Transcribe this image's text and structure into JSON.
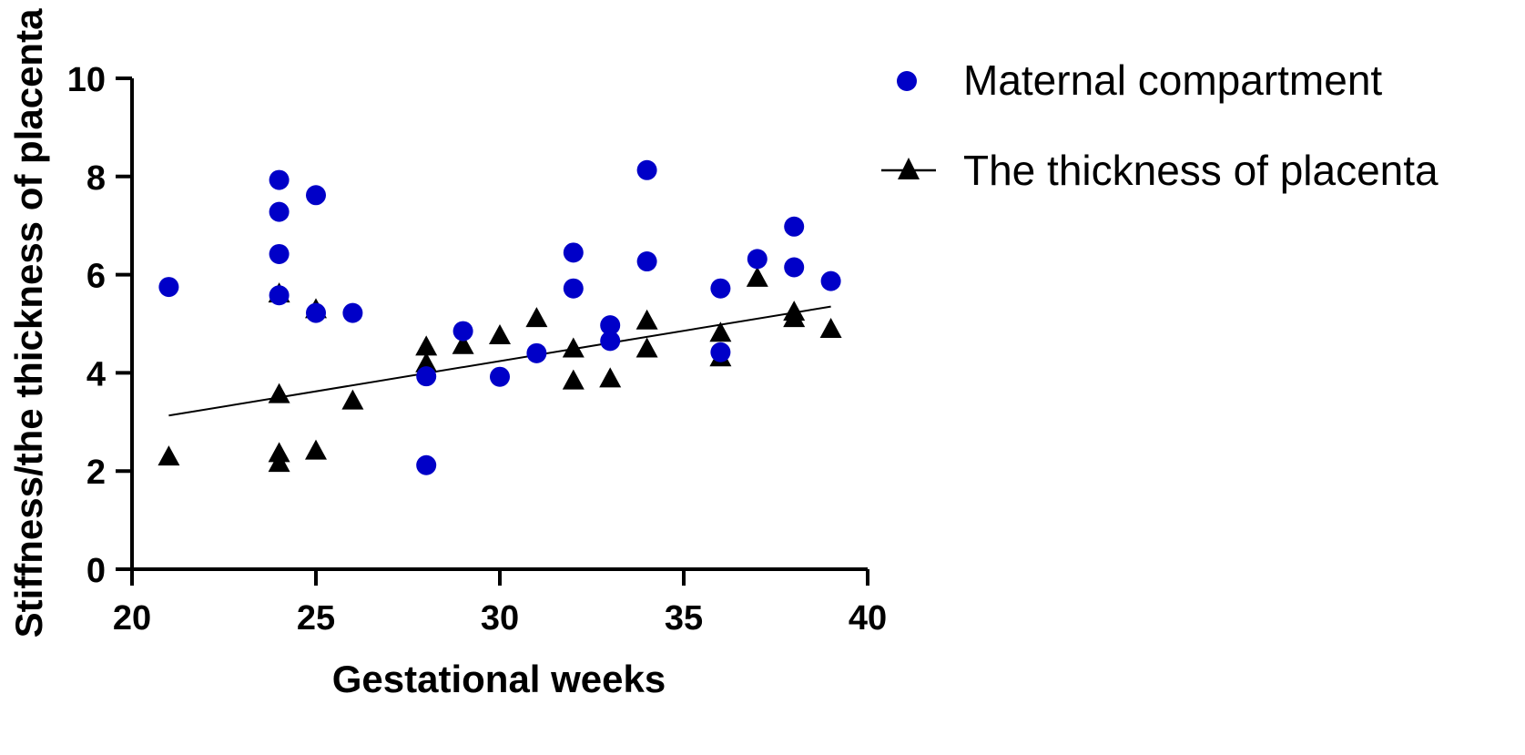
{
  "chart_data": {
    "type": "scatter",
    "xlabel": "Gestational weeks",
    "ylabel": "Stiffness/the thickness of placenta",
    "xlim": [
      20,
      40
    ],
    "ylim": [
      0,
      10
    ],
    "xticks": [
      "20",
      "25",
      "30",
      "35",
      "40"
    ],
    "yticks": [
      "0",
      "2",
      "4",
      "6",
      "8",
      "10"
    ],
    "legend_position": "top-right",
    "series": [
      {
        "name": "Maternal compartment",
        "marker": "circle",
        "color": "#0000c8",
        "points": [
          [
            21,
            5.75
          ],
          [
            24,
            7.93
          ],
          [
            24,
            7.28
          ],
          [
            24,
            6.42
          ],
          [
            24,
            5.58
          ],
          [
            25,
            7.62
          ],
          [
            25,
            5.22
          ],
          [
            26,
            5.22
          ],
          [
            28,
            3.93
          ],
          [
            28,
            2.12
          ],
          [
            29,
            4.85
          ],
          [
            30,
            3.92
          ],
          [
            31,
            4.4
          ],
          [
            32,
            6.45
          ],
          [
            32,
            5.72
          ],
          [
            33,
            4.97
          ],
          [
            33,
            4.65
          ],
          [
            34,
            8.13
          ],
          [
            34,
            6.27
          ],
          [
            36,
            5.72
          ],
          [
            36,
            4.42
          ],
          [
            37,
            6.32
          ],
          [
            38,
            6.98
          ],
          [
            38,
            6.15
          ],
          [
            39,
            5.87
          ]
        ]
      },
      {
        "name": "The thickness of placenta",
        "marker": "triangle",
        "color": "#000000",
        "points": [
          [
            21,
            2.28
          ],
          [
            24,
            5.6
          ],
          [
            24,
            3.55
          ],
          [
            24,
            2.35
          ],
          [
            24,
            2.15
          ],
          [
            25,
            5.28
          ],
          [
            25,
            2.4
          ],
          [
            26,
            3.42
          ],
          [
            28,
            4.52
          ],
          [
            28,
            4.18
          ],
          [
            29,
            4.55
          ],
          [
            30,
            4.75
          ],
          [
            31,
            5.1
          ],
          [
            32,
            4.48
          ],
          [
            32,
            3.83
          ],
          [
            33,
            3.87
          ],
          [
            34,
            5.05
          ],
          [
            34,
            4.48
          ],
          [
            36,
            4.8
          ],
          [
            36,
            4.3
          ],
          [
            37,
            5.92
          ],
          [
            38,
            5.23
          ],
          [
            38,
            5.1
          ],
          [
            39,
            4.88
          ]
        ],
        "fit_line": {
          "x": [
            21,
            39
          ],
          "y": [
            3.13,
            5.35
          ]
        }
      }
    ]
  }
}
